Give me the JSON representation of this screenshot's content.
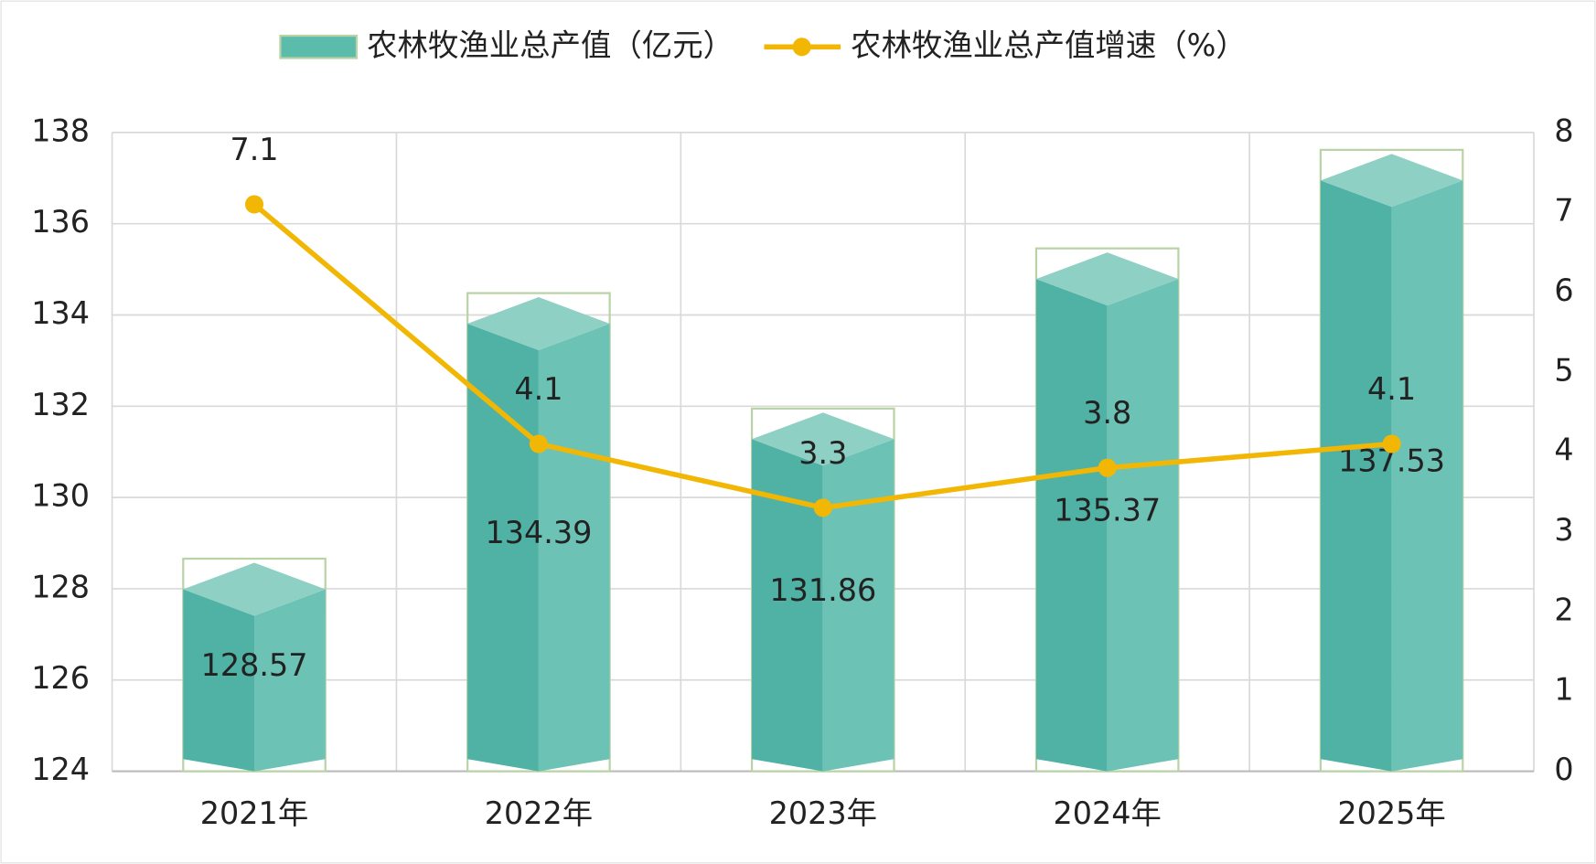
{
  "chart_data": {
    "type": "bar",
    "categories": [
      "2021年",
      "2022年",
      "2023年",
      "2024年",
      "2025年"
    ],
    "series": [
      {
        "name": "农林牧渔业总产值（亿元）",
        "type": "bar",
        "color": "#5bbcac",
        "values": [
          128.57,
          134.39,
          131.86,
          135.37,
          137.53
        ]
      },
      {
        "name": "农林牧渔业总产值增速（%）",
        "type": "line",
        "axis": "y2",
        "color": "#f2b705",
        "values": [
          7.1,
          4.1,
          3.3,
          3.8,
          4.1
        ]
      }
    ],
    "ylim": [
      124,
      138
    ],
    "yticks": [
      124,
      126,
      128,
      130,
      132,
      134,
      136,
      138
    ],
    "y2lim": [
      0,
      8
    ],
    "y2ticks": [
      0,
      1,
      2,
      3,
      4,
      5,
      6,
      7,
      8
    ],
    "grid": true,
    "legend": "top"
  }
}
